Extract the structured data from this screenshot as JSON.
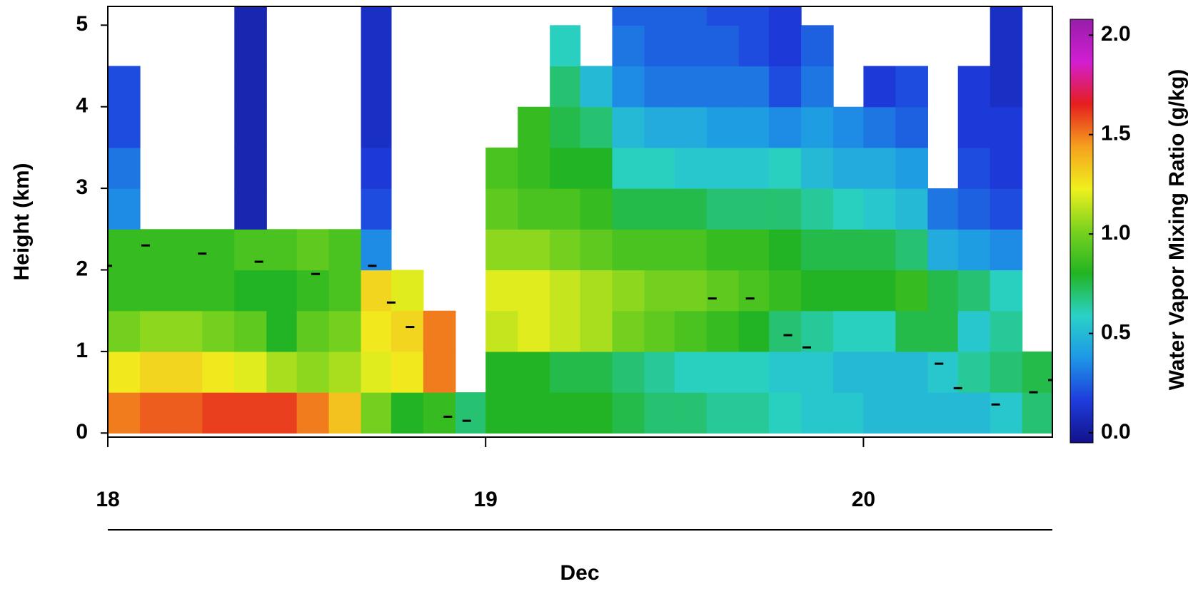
{
  "chart_data": {
    "type": "heatmap",
    "ylabel": "Height (km)",
    "xlabel": "Dec",
    "colorbar_label": "Water Vapor Mixing Ratio (g/kg)",
    "x": [
      18.04,
      18.13,
      18.21,
      18.29,
      18.38,
      18.46,
      18.54,
      18.63,
      18.71,
      18.79,
      18.88,
      18.96,
      19.04,
      19.13,
      19.21,
      19.29,
      19.38,
      19.46,
      19.54,
      19.63,
      19.71,
      19.79,
      19.88,
      19.96,
      20.04,
      20.13,
      20.21,
      20.29,
      20.38,
      20.46
    ],
    "y": [
      0.25,
      0.75,
      1.25,
      1.75,
      2.25,
      2.75,
      3.25,
      3.75,
      4.25,
      4.75,
      5.25
    ],
    "z": [
      [
        1.5,
        1.55,
        1.55,
        1.6,
        1.6,
        1.6,
        1.5,
        1.35,
        1.0,
        0.8,
        0.85,
        0.7,
        0.8,
        0.8,
        0.8,
        0.8,
        0.75,
        0.7,
        0.7,
        0.65,
        0.65,
        0.6,
        0.55,
        0.55,
        0.5,
        0.5,
        0.5,
        0.5,
        0.55,
        0.7
      ],
      [
        1.25,
        1.3,
        1.3,
        1.25,
        1.2,
        1.1,
        1.05,
        1.1,
        1.2,
        1.25,
        1.5,
        null,
        0.8,
        0.8,
        0.75,
        0.75,
        0.7,
        0.65,
        0.6,
        0.6,
        0.6,
        0.55,
        0.55,
        0.5,
        0.5,
        0.5,
        0.55,
        0.65,
        0.7,
        0.75
      ],
      [
        1.0,
        1.05,
        1.05,
        1.0,
        0.95,
        0.8,
        0.95,
        1.0,
        1.25,
        1.3,
        1.5,
        null,
        1.15,
        1.2,
        1.15,
        1.1,
        1.0,
        0.95,
        0.9,
        0.85,
        0.8,
        0.7,
        0.65,
        0.6,
        0.6,
        0.75,
        0.75,
        0.55,
        0.65,
        null
      ],
      [
        0.85,
        0.85,
        0.85,
        0.85,
        0.8,
        0.8,
        0.85,
        0.9,
        1.3,
        1.2,
        null,
        null,
        1.2,
        1.2,
        1.15,
        1.1,
        1.05,
        1.0,
        1.0,
        0.95,
        0.9,
        0.85,
        0.8,
        0.8,
        0.8,
        0.85,
        0.75,
        0.7,
        0.6,
        null
      ],
      [
        0.85,
        0.85,
        0.85,
        0.85,
        0.9,
        0.9,
        0.95,
        0.9,
        0.35,
        null,
        null,
        null,
        1.05,
        1.05,
        1.0,
        0.95,
        0.9,
        0.9,
        0.9,
        0.85,
        0.85,
        0.8,
        0.75,
        0.75,
        0.75,
        0.7,
        0.45,
        0.4,
        0.35,
        null
      ],
      [
        0.35,
        null,
        null,
        null,
        0.05,
        null,
        null,
        null,
        0.2,
        null,
        null,
        null,
        0.95,
        0.9,
        0.9,
        0.85,
        0.75,
        0.75,
        0.75,
        0.7,
        0.7,
        0.7,
        0.65,
        0.6,
        0.55,
        0.5,
        0.3,
        0.25,
        0.2,
        null
      ],
      [
        0.3,
        null,
        null,
        null,
        0.05,
        null,
        null,
        null,
        0.15,
        null,
        null,
        null,
        0.9,
        0.85,
        0.8,
        0.8,
        0.6,
        0.6,
        0.55,
        0.55,
        0.55,
        0.6,
        0.5,
        0.45,
        0.45,
        0.4,
        null,
        0.2,
        0.15,
        null
      ],
      [
        0.2,
        null,
        null,
        null,
        0.05,
        null,
        null,
        null,
        0.1,
        null,
        null,
        null,
        null,
        0.85,
        0.75,
        0.7,
        0.5,
        0.45,
        0.45,
        0.4,
        0.4,
        0.35,
        0.4,
        0.35,
        0.3,
        0.25,
        null,
        0.15,
        0.15,
        null
      ],
      [
        0.2,
        null,
        null,
        null,
        0.05,
        null,
        null,
        null,
        0.1,
        null,
        null,
        null,
        null,
        null,
        0.7,
        0.5,
        0.35,
        0.3,
        0.3,
        0.3,
        0.3,
        0.2,
        0.3,
        null,
        0.15,
        0.2,
        null,
        0.15,
        0.1,
        null
      ],
      [
        null,
        null,
        null,
        null,
        0.05,
        null,
        null,
        null,
        0.1,
        null,
        null,
        null,
        null,
        null,
        0.6,
        null,
        0.3,
        0.25,
        0.25,
        0.25,
        0.2,
        0.15,
        0.25,
        null,
        null,
        null,
        null,
        null,
        0.1,
        null
      ],
      [
        null,
        null,
        null,
        null,
        0.05,
        null,
        null,
        null,
        0.1,
        null,
        null,
        null,
        null,
        null,
        null,
        null,
        0.25,
        0.25,
        0.25,
        0.2,
        0.2,
        0.15,
        null,
        null,
        null,
        null,
        null,
        null,
        0.1,
        null
      ]
    ],
    "markers": {
      "x": [
        18.0,
        18.1,
        18.25,
        18.4,
        18.55,
        18.7,
        18.75,
        18.8,
        18.9,
        18.95,
        19.6,
        19.7,
        19.8,
        19.85,
        20.2,
        20.25,
        20.35,
        20.45,
        20.5
      ],
      "y": [
        2.05,
        2.3,
        2.2,
        2.1,
        1.95,
        2.05,
        1.6,
        1.3,
        0.2,
        0.15,
        1.65,
        1.65,
        1.2,
        1.05,
        0.85,
        0.55,
        0.35,
        0.5,
        0.65
      ],
      "color": "#000000"
    },
    "xlim": [
      18,
      20.5
    ],
    "xticks": [
      18,
      19,
      20
    ],
    "ylim": [
      -0.05,
      5.23
    ],
    "yticks": [
      0,
      1,
      2,
      3,
      4,
      5
    ],
    "zlim": [
      -0.05,
      2.08
    ],
    "zticks": [
      {
        "value": 0,
        "label": "0.0"
      },
      {
        "value": 0.5,
        "label": "0.5"
      },
      {
        "value": 1,
        "label": "1.0"
      },
      {
        "value": 1.5,
        "label": "1.5"
      },
      {
        "value": 2,
        "label": "2.0"
      }
    ],
    "colormap": [
      "#12128a",
      "#1e3cdc",
      "#1e96e6",
      "#2ad2c8",
      "#22b422",
      "#7ad21e",
      "#f0f01e",
      "#f5a01e",
      "#e61e1e",
      "#d21ed2",
      "#961eaa"
    ]
  }
}
